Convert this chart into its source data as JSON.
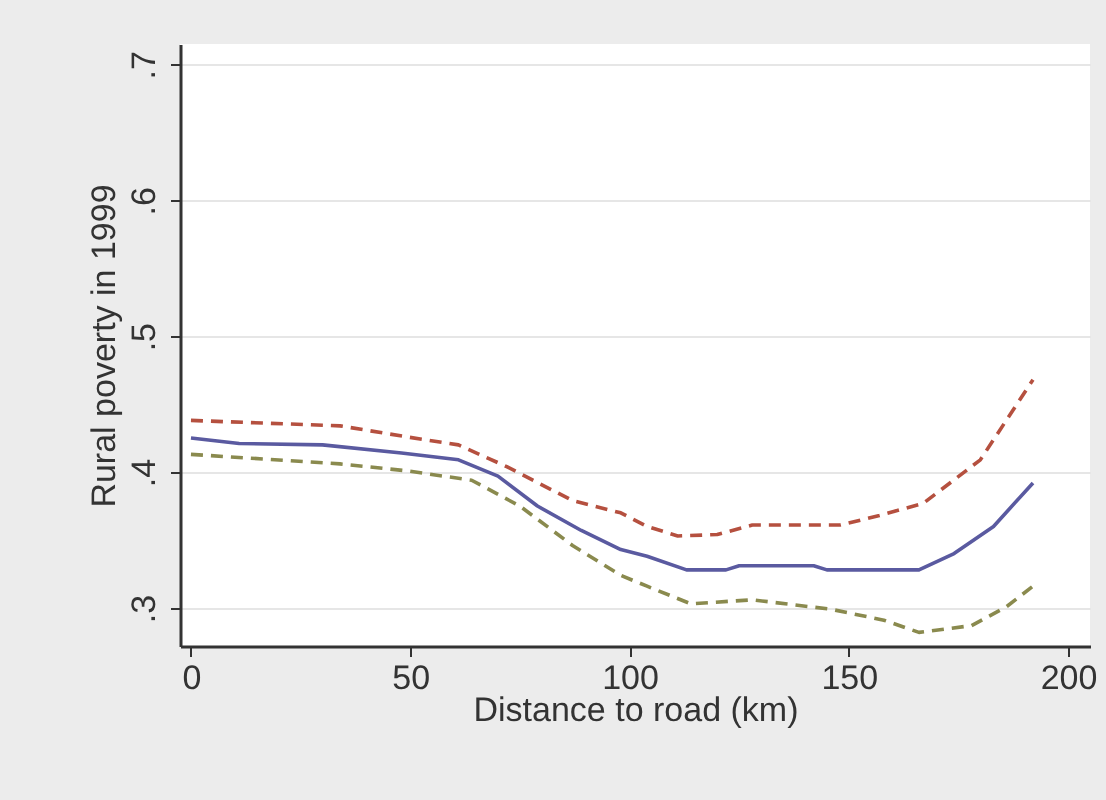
{
  "chart_data": {
    "type": "line",
    "xlabel": "Distance to road (km)",
    "ylabel": "Rural poverty in 1999",
    "xlim": [
      -2.5,
      205
    ],
    "ylim": [
      0.272,
      0.715
    ],
    "xticks": [
      0,
      50,
      100,
      150,
      200
    ],
    "yticks": [
      {
        "value": 0.3,
        "label": ".3"
      },
      {
        "value": 0.4,
        "label": ".4"
      },
      {
        "value": 0.5,
        "label": ".5"
      },
      {
        "value": 0.6,
        "label": ".6"
      },
      {
        "value": 0.7,
        "label": ".7"
      }
    ],
    "grid": "y",
    "series": [
      {
        "color": "#b5503f",
        "line_style": "dashed",
        "x": [
          0,
          34,
          49,
          61,
          72,
          87,
          98,
          104,
          111,
          120,
          128,
          148,
          157,
          167,
          180,
          192
        ],
        "values": [
          0.438,
          0.434,
          0.426,
          0.42,
          0.404,
          0.379,
          0.37,
          0.36,
          0.353,
          0.354,
          0.361,
          0.361,
          0.368,
          0.377,
          0.409,
          0.468
        ]
      },
      {
        "color": "#5a5aa0",
        "line_style": "solid",
        "x": [
          0,
          11,
          30,
          48,
          61,
          70,
          79,
          89,
          98,
          104,
          113,
          122,
          125,
          142,
          145,
          166,
          174,
          183,
          192
        ],
        "values": [
          0.425,
          0.421,
          0.42,
          0.414,
          0.409,
          0.397,
          0.375,
          0.357,
          0.343,
          0.338,
          0.328,
          0.328,
          0.331,
          0.331,
          0.328,
          0.328,
          0.34,
          0.36,
          0.392
        ]
      },
      {
        "color": "#8a8a4e",
        "line_style": "dashed",
        "x": [
          0,
          34,
          49,
          64,
          75,
          87,
          98,
          104,
          114,
          128,
          146,
          158,
          166,
          178,
          186,
          192
        ],
        "values": [
          0.413,
          0.406,
          0.401,
          0.394,
          0.375,
          0.346,
          0.324,
          0.316,
          0.303,
          0.306,
          0.299,
          0.291,
          0.282,
          0.287,
          0.301,
          0.316
        ]
      }
    ]
  }
}
